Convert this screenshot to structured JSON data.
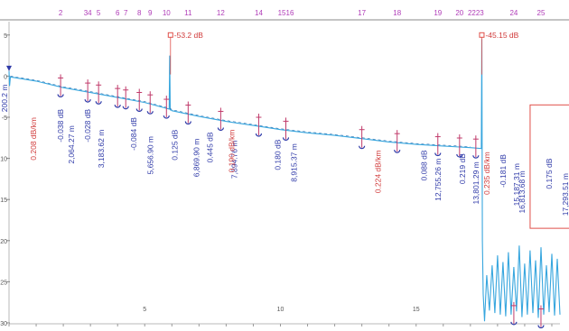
{
  "chart_data": {
    "type": "line",
    "title": "",
    "xlabel": "",
    "ylabel": "",
    "xlim": [
      0,
      20.3
    ],
    "ylim": [
      -30,
      7.5
    ],
    "y_ticks": [
      5,
      0,
      -5,
      -10,
      -15,
      -20,
      -25,
      -30
    ],
    "y_tick_labels": [
      "5",
      "0",
      "-5",
      "-10",
      "-15",
      "-20",
      "-25",
      "-30"
    ],
    "x_ticks": [
      5,
      10,
      15
    ],
    "x_tick_labels": [
      "5",
      "10",
      "15"
    ],
    "grid": false,
    "trace": {
      "x": [
        0,
        0.02,
        0.05,
        1,
        2,
        3,
        4,
        5,
        5.9,
        5.92,
        5.94,
        5.97,
        6.0,
        7,
        8,
        9,
        10,
        11,
        12,
        13,
        14,
        15,
        16,
        17,
        17.4,
        17.42,
        17.44,
        17.47,
        17.52,
        17.6,
        17.7,
        17.8,
        17.9,
        18.0,
        18.1,
        18.2,
        18.3,
        18.4,
        18.5,
        18.6,
        18.7,
        18.8,
        18.9,
        19.0,
        19.1,
        19.2,
        19.3,
        19.4,
        19.5,
        19.6,
        19.7,
        19.8,
        19.9,
        20.0,
        20.1,
        20.2,
        20.3
      ],
      "y": [
        0.6,
        -1.2,
        -0.1,
        -0.6,
        -1.4,
        -2.0,
        -2.6,
        -3.2,
        -4.0,
        2.5,
        -4.1,
        -4.1,
        -4.2,
        -4.9,
        -5.5,
        -6.0,
        -6.5,
        -6.9,
        -7.2,
        -7.6,
        -8.0,
        -8.3,
        -8.5,
        -8.7,
        -8.8,
        4.5,
        -20.0,
        -26.5,
        -29.8,
        -24.2,
        -28.5,
        -23.0,
        -28.8,
        -21.8,
        -29.0,
        -22.6,
        -29.2,
        -21.4,
        -29.0,
        -23.2,
        -28.6,
        -20.6,
        -29.3,
        -22.8,
        -29.0,
        -21.2,
        -28.8,
        -22.4,
        -29.4,
        -20.8,
        -29.0,
        -23.0,
        -28.7,
        -21.6,
        -29.1,
        -22.2,
        -29.0
      ]
    },
    "top_annotations": [
      {
        "text": "-53.2 dB",
        "x": 5.95,
        "y": 5.0
      },
      {
        "text": "-45.15 dB",
        "x": 17.42,
        "y": 5.0
      }
    ],
    "events": [
      {
        "number": "2",
        "x": 1.9
      },
      {
        "number": "34",
        "x": 2.9
      },
      {
        "number": "5",
        "x": 3.3
      },
      {
        "number": "6",
        "x": 4.0
      },
      {
        "number": "7",
        "x": 4.3
      },
      {
        "number": "8",
        "x": 4.8
      },
      {
        "number": "9",
        "x": 5.2
      },
      {
        "number": "10",
        "x": 5.8
      },
      {
        "number": "11",
        "x": 6.6
      },
      {
        "number": "12",
        "x": 7.8
      },
      {
        "number": "14",
        "x": 9.2
      },
      {
        "number": "1516",
        "x": 10.2
      },
      {
        "number": "17",
        "x": 13.0
      },
      {
        "number": "18",
        "x": 14.3
      },
      {
        "number": "19",
        "x": 15.8
      },
      {
        "number": "20",
        "x": 16.6
      },
      {
        "number": "2223",
        "x": 17.2
      },
      {
        "number": "24",
        "x": 18.6
      },
      {
        "number": "25",
        "x": 19.6
      }
    ],
    "trace_annotations": [
      {
        "text": "-0.038 dB",
        "color": "#2f3aa8",
        "x": 2.0,
        "y": -4.0
      },
      {
        "text": "-0.028 dB",
        "color": "#2f3aa8",
        "x": 3.0,
        "y": -4.0
      },
      {
        "text": "-0.084 dB",
        "color": "#2f3aa8",
        "x": 4.7,
        "y": -5.0
      },
      {
        "text": "0.125 dB",
        "color": "#2f3aa8",
        "x": 6.2,
        "y": -6.5
      },
      {
        "text": "0.445 dB",
        "color": "#2f3aa8",
        "x": 7.5,
        "y": -6.8
      },
      {
        "text": "0.180 dB",
        "color": "#2f3aa8",
        "x": 10.0,
        "y": -7.7
      },
      {
        "text": "0.088 dB",
        "color": "#2f3aa8",
        "x": 15.4,
        "y": -9.0
      },
      {
        "text": "0.219 dB",
        "color": "#2f3aa8",
        "x": 16.8,
        "y": -9.4
      },
      {
        "text": "-0.181 dB",
        "color": "#2f3aa8",
        "x": 18.3,
        "y": -9.5
      },
      {
        "text": "0.175 dB",
        "color": "#2f3aa8",
        "x": 20.0,
        "y": -10.0
      },
      {
        "text": "2,064.27 m",
        "color": "#2f3aa8",
        "x": 2.4,
        "y": -6.0
      },
      {
        "text": "3,183.62 m",
        "color": "#2f3aa8",
        "x": 3.5,
        "y": -6.5
      },
      {
        "text": "5,656.90 m",
        "color": "#2f3aa8",
        "x": 5.3,
        "y": -7.3
      },
      {
        "text": "6,869.90 m",
        "color": "#2f3aa8",
        "x": 7.0,
        "y": -7.6
      },
      {
        "text": "7,894.76 m",
        "color": "#2f3aa8",
        "x": 8.4,
        "y": -7.8
      },
      {
        "text": "8,915.37 m",
        "color": "#2f3aa8",
        "x": 10.6,
        "y": -8.2
      },
      {
        "text": "12,755.26 m",
        "color": "#2f3aa8",
        "x": 15.9,
        "y": -10.0
      },
      {
        "text": "13,801.29 m",
        "color": "#2f3aa8",
        "x": 17.3,
        "y": -10.4
      },
      {
        "text": "15,187.31 m",
        "color": "#2f3aa8",
        "x": 18.8,
        "y": -10.6
      },
      {
        "text": "16,813.68 m",
        "color": "#2f3aa8",
        "x": 19.0,
        "y": -11.5
      },
      {
        "text": "17,293.51 m",
        "color": "#2f3aa8",
        "x": 20.6,
        "y": -11.8
      },
      {
        "text": "0.208 dB/km",
        "color": "#d03a3a",
        "x": 1.0,
        "y": -5.0
      },
      {
        "text": "0.190 dB/km",
        "color": "#d03a3a",
        "x": 8.3,
        "y": -6.5
      },
      {
        "text": "0.224 dB/km",
        "color": "#d03a3a",
        "x": 13.7,
        "y": -9.0
      },
      {
        "text": "0.235 dB/km",
        "color": "#d03a3a",
        "x": 17.7,
        "y": -9.2
      }
    ],
    "start_label": "200.2 m",
    "highlight_region": {
      "x": [
        19.2,
        20.7
      ],
      "y": [
        -18.5,
        -3.5
      ]
    },
    "colors": {
      "trace": "#37a6de",
      "event_marker": "#2f3aa8",
      "event_number": "#b03cb8",
      "top_marker": "#e0504a",
      "highlight": "#e0504a",
      "slope_text": "#d03a3a"
    }
  }
}
